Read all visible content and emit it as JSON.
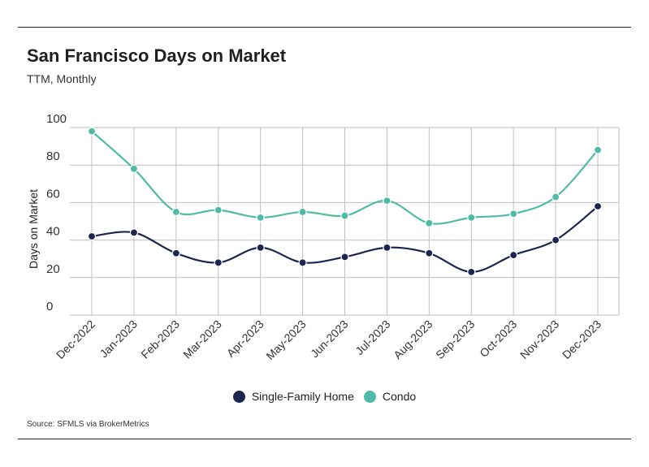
{
  "title": "San Francisco Days on Market",
  "subtitle": "TTM, Monthly",
  "source": "Source:  SFMLS via BrokerMetrics",
  "colors": {
    "single_family": "#1b2550",
    "condo": "#4fbba6",
    "grid": "#bfbfbf"
  },
  "chart_data": {
    "type": "line",
    "ylabel": "Days on Market",
    "xlabel": "",
    "ylim": [
      0,
      100
    ],
    "yticks": [
      0,
      20,
      40,
      60,
      80,
      100
    ],
    "grid": true,
    "legend_position": "bottom",
    "categories": [
      "Dec-2022",
      "Jan-2023",
      "Feb-2023",
      "Mar-2023",
      "Apr-2023",
      "May-2023",
      "Jun-2023",
      "Jul-2023",
      "Aug-2023",
      "Sep-2023",
      "Oct-2023",
      "Nov-2023",
      "Dec-2023"
    ],
    "series": [
      {
        "name": "Single-Family Home",
        "values": [
          42,
          44,
          33,
          28,
          36,
          28,
          31,
          36,
          33,
          23,
          32,
          40,
          58
        ]
      },
      {
        "name": "Condo",
        "values": [
          98,
          78,
          55,
          56,
          52,
          55,
          53,
          61,
          49,
          52,
          54,
          63,
          88
        ]
      }
    ]
  }
}
